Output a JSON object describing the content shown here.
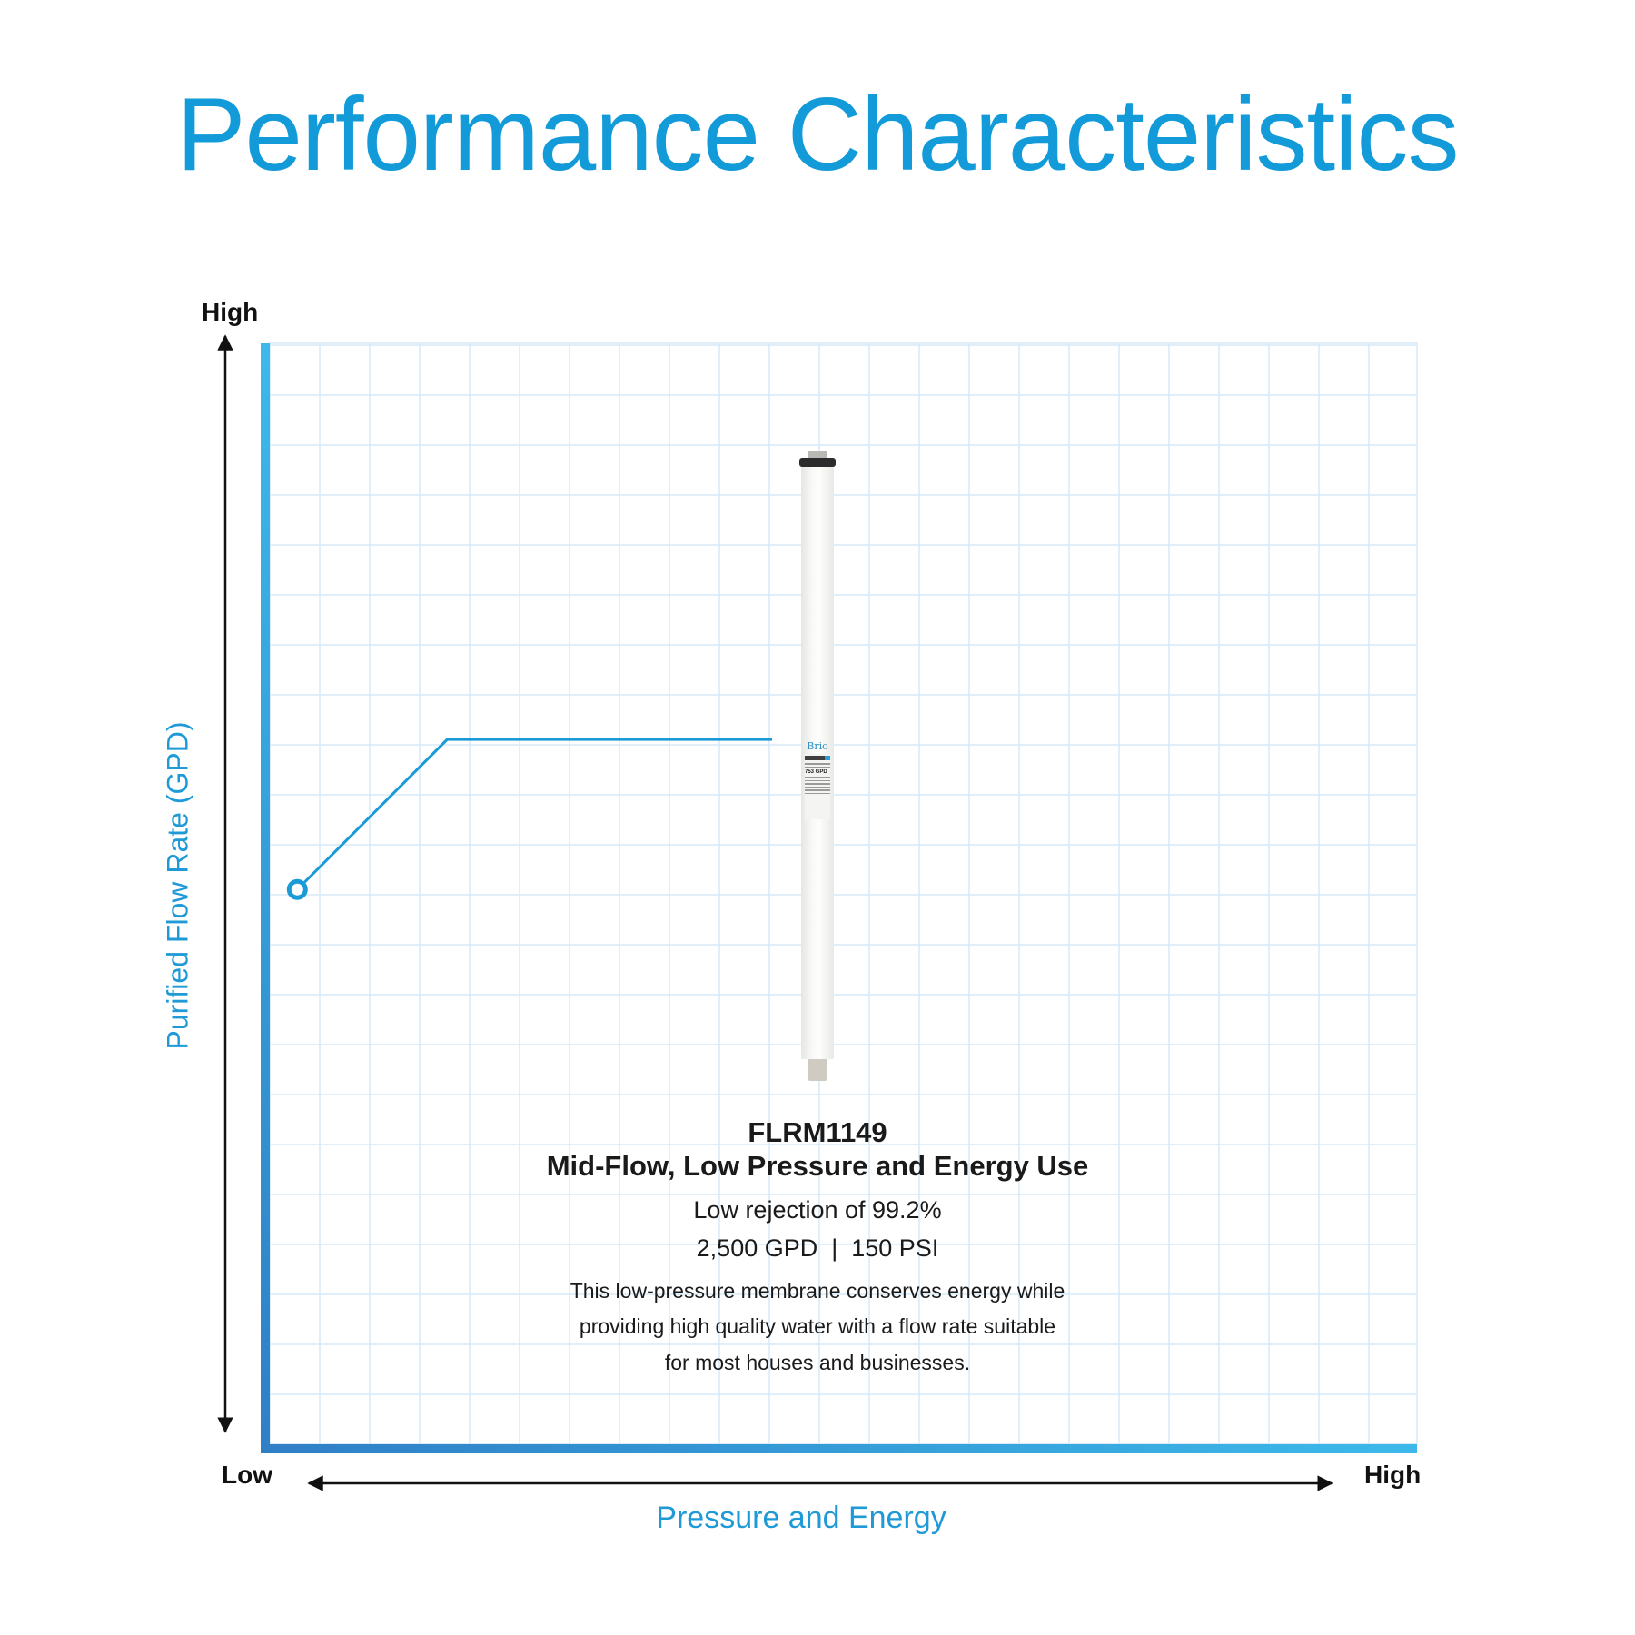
{
  "title": "Performance Characteristics",
  "chart_data": {
    "type": "scatter",
    "title": "Performance Characteristics",
    "xlabel": "Pressure and Energy",
    "ylabel": "Purified Flow Rate (GPD)",
    "x_axis_ends": {
      "low": "Low",
      "high": "High"
    },
    "y_axis_ends": {
      "high": "High"
    },
    "xlim": [
      0,
      1
    ],
    "ylim": [
      0,
      1
    ],
    "grid": true,
    "points": [
      {
        "label": "FLRM1149",
        "x": 0.024,
        "y": 0.504
      }
    ],
    "callout": {
      "model": "FLRM1149",
      "subtitle": "Mid-Flow, Low Pressure and Energy Use",
      "rejection": "Low rejection of 99.2%",
      "spec": "2,500 GPD  |  150 PSI",
      "description_lines": [
        "This low-pressure membrane conserves energy while",
        "providing high quality water with a flow rate suitable",
        "for most houses and businesses."
      ]
    },
    "colors": {
      "title": "#129bd8",
      "axis_gradient_start": "#2f7fc6",
      "axis_gradient_end": "#3cb9ea",
      "grid": "#d6eaf7",
      "marker": "#1a9bd7"
    }
  },
  "product_image": {
    "brand": "Brio",
    "label_rating": "753 GPD"
  }
}
